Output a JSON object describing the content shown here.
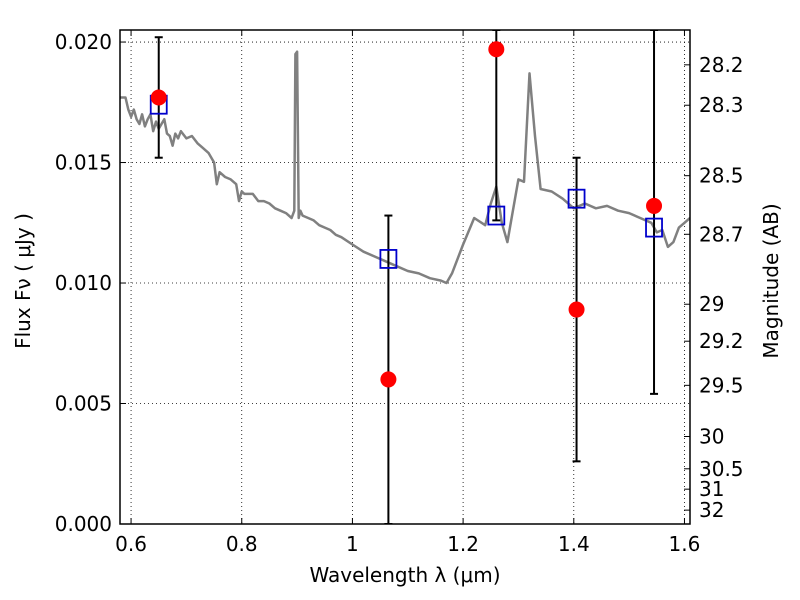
{
  "chart_data": {
    "type": "scatter",
    "xlabel": "Wavelength  λ (μm)",
    "ylabel": "Flux  Fν  ( μJy )",
    "y2label": "Magnitude (AB)",
    "xlim": [
      0.58,
      1.61
    ],
    "ylim": [
      0.0,
      0.0205
    ],
    "grid": true,
    "x_ticks": [
      {
        "value": 0.6,
        "label": "0.6"
      },
      {
        "value": 0.8,
        "label": "0.8"
      },
      {
        "value": 1.0,
        "label": "1"
      },
      {
        "value": 1.2,
        "label": "1.2"
      },
      {
        "value": 1.4,
        "label": "1.4"
      },
      {
        "value": 1.6,
        "label": "1.6"
      }
    ],
    "y_ticks": [
      {
        "value": 0.0,
        "label": "0.000"
      },
      {
        "value": 0.005,
        "label": "0.005"
      },
      {
        "value": 0.01,
        "label": "0.010"
      },
      {
        "value": 0.015,
        "label": "0.015"
      },
      {
        "value": 0.02,
        "label": "0.020"
      }
    ],
    "y2_ticks": [
      {
        "value": 28.2,
        "label": "28.2"
      },
      {
        "value": 28.3,
        "label": "28.3"
      },
      {
        "value": 28.5,
        "label": "28.5"
      },
      {
        "value": 28.7,
        "label": "28.7"
      },
      {
        "value": 29.0,
        "label": "29"
      },
      {
        "value": 29.2,
        "label": "29.2"
      },
      {
        "value": 29.5,
        "label": "29.5"
      },
      {
        "value": 30.0,
        "label": "30"
      },
      {
        "value": 30.5,
        "label": "30.5"
      },
      {
        "value": 31.0,
        "label": "31"
      },
      {
        "value": 32.0,
        "label": "32"
      }
    ],
    "series": [
      {
        "kind": "line",
        "color": "#808080",
        "x": [
          0.58,
          0.59,
          0.595,
          0.6,
          0.605,
          0.61,
          0.615,
          0.62,
          0.625,
          0.63,
          0.635,
          0.64,
          0.645,
          0.65,
          0.655,
          0.66,
          0.665,
          0.67,
          0.675,
          0.68,
          0.685,
          0.69,
          0.7,
          0.71,
          0.72,
          0.73,
          0.74,
          0.75,
          0.755,
          0.76,
          0.77,
          0.78,
          0.79,
          0.795,
          0.8,
          0.805,
          0.81,
          0.82,
          0.83,
          0.84,
          0.85,
          0.86,
          0.87,
          0.88,
          0.89,
          0.895,
          0.897,
          0.9,
          0.903,
          0.906,
          0.91,
          0.92,
          0.93,
          0.94,
          0.95,
          0.96,
          0.97,
          0.98,
          1.0,
          1.02,
          1.04,
          1.06,
          1.08,
          1.1,
          1.12,
          1.14,
          1.16,
          1.17,
          1.18,
          1.2,
          1.22,
          1.24,
          1.25,
          1.26,
          1.27,
          1.28,
          1.29,
          1.3,
          1.31,
          1.32,
          1.33,
          1.34,
          1.36,
          1.38,
          1.4,
          1.42,
          1.44,
          1.46,
          1.48,
          1.5,
          1.52,
          1.54,
          1.55,
          1.56,
          1.57,
          1.58,
          1.59,
          1.6,
          1.61
        ],
        "y": [
          0.0177,
          0.0177,
          0.0172,
          0.0169,
          0.0172,
          0.0168,
          0.0166,
          0.017,
          0.0165,
          0.0168,
          0.017,
          0.0163,
          0.0167,
          0.0164,
          0.0166,
          0.0168,
          0.0162,
          0.0161,
          0.0157,
          0.0162,
          0.016,
          0.0163,
          0.016,
          0.0161,
          0.0158,
          0.0156,
          0.0154,
          0.015,
          0.0141,
          0.0146,
          0.0144,
          0.0143,
          0.0141,
          0.0134,
          0.0138,
          0.0137,
          0.0137,
          0.0137,
          0.0134,
          0.0134,
          0.0133,
          0.0131,
          0.013,
          0.0129,
          0.0127,
          0.013,
          0.0195,
          0.0196,
          0.0127,
          0.013,
          0.0128,
          0.0127,
          0.0126,
          0.0124,
          0.0123,
          0.0122,
          0.012,
          0.0119,
          0.0116,
          0.0113,
          0.0111,
          0.0109,
          0.0107,
          0.0105,
          0.0104,
          0.0102,
          0.0101,
          0.01,
          0.0104,
          0.0116,
          0.0127,
          0.0124,
          0.0133,
          0.014,
          0.0125,
          0.0117,
          0.013,
          0.0143,
          0.0142,
          0.0187,
          0.0161,
          0.0139,
          0.0138,
          0.0135,
          0.0131,
          0.0133,
          0.0131,
          0.0132,
          0.013,
          0.0129,
          0.0127,
          0.0125,
          0.0121,
          0.0122,
          0.0115,
          0.0117,
          0.0123,
          0.0125,
          0.0127
        ]
      },
      {
        "kind": "points",
        "marker": "circle",
        "color": "#ff0000",
        "x": [
          0.65,
          1.065,
          1.26,
          1.405,
          1.545
        ],
        "y": [
          0.0177,
          0.006,
          0.0197,
          0.0089,
          0.0132
        ],
        "yerr_low": [
          0.0152,
          0.0,
          0.0126,
          0.0026,
          0.0054
        ],
        "yerr_high": [
          0.0202,
          0.0128,
          0.0205,
          0.0152,
          0.0205
        ]
      },
      {
        "kind": "points",
        "marker": "square",
        "color": "#0000cc",
        "x": [
          0.65,
          1.065,
          1.26,
          1.405,
          1.545
        ],
        "y": [
          0.0174,
          0.011,
          0.0128,
          0.0135,
          0.0123
        ]
      }
    ],
    "overlap_marker_color": "#aa00cc"
  }
}
